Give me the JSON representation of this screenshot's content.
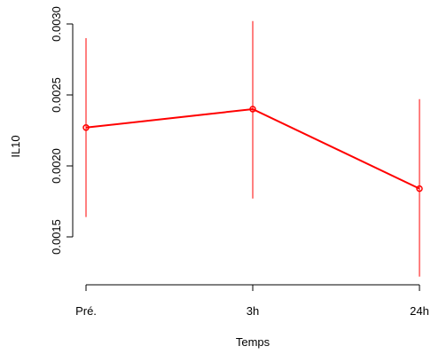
{
  "chart_data": {
    "type": "line",
    "title": "",
    "xlabel": "Temps",
    "ylabel": "IL10",
    "categories": [
      "Pré.",
      "3h",
      "24h"
    ],
    "y_ticks": [
      "0.0015",
      "0.0020",
      "0.0025",
      "0.0030"
    ],
    "ylim": [
      0.0012,
      0.0031
    ],
    "grid": false,
    "legend": "none",
    "series": [
      {
        "values": [
          0.00227,
          0.0024,
          0.00184
        ],
        "error_low": [
          0.00164,
          0.00177,
          0.00122
        ],
        "error_high": [
          0.0029,
          0.00302,
          0.00247
        ],
        "color": "#ff0000"
      }
    ]
  }
}
